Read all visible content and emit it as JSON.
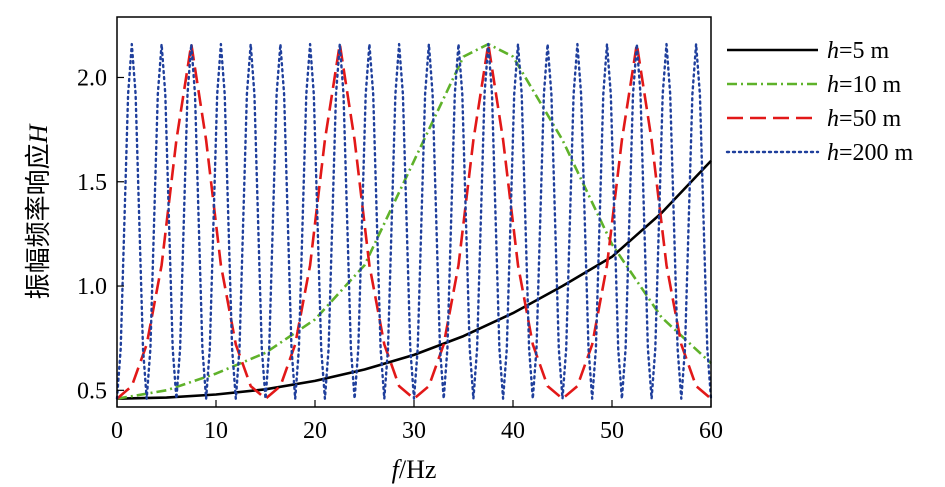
{
  "chart_data": {
    "type": "line",
    "xlabel": {
      "italic": "f",
      "rest": "/Hz"
    },
    "ylabel": {
      "text": "振幅频率响应",
      "italic": "H"
    },
    "xlim": [
      0,
      60
    ],
    "ylim": [
      0.42,
      2.29
    ],
    "x_ticks": [
      0,
      10,
      20,
      30,
      40,
      50,
      60
    ],
    "y_ticks": [
      0.5,
      1.0,
      1.5,
      2.0
    ],
    "x_tick_labels": [
      "0",
      "10",
      "20",
      "30",
      "40",
      "50",
      "60"
    ],
    "y_tick_labels": [
      "0.5",
      "1.0",
      "1.5",
      "2.0"
    ],
    "grid": false,
    "legend_position": "outside-right-top",
    "series": [
      {
        "name": "h=5 m",
        "legend_italic": "h",
        "legend_rest": "=5 m",
        "color": "#000000",
        "dash": "solid",
        "x": [
          0,
          5,
          10,
          15,
          20,
          25,
          30,
          35,
          40,
          45,
          50,
          55,
          60
        ],
        "y": [
          0.46,
          0.465,
          0.48,
          0.505,
          0.545,
          0.6,
          0.67,
          0.76,
          0.87,
          1.0,
          1.14,
          1.35,
          1.6
        ]
      },
      {
        "name": "h=10 m",
        "legend_italic": "h",
        "legend_rest": "=10 m",
        "color": "#5fb22a",
        "dash": "dashdot",
        "x": [
          0,
          5,
          10,
          15,
          20,
          25,
          30,
          35,
          37.5,
          40,
          45,
          50,
          55,
          60
        ],
        "y": [
          0.46,
          0.5,
          0.58,
          0.68,
          0.84,
          1.1,
          1.6,
          2.1,
          2.16,
          2.1,
          1.7,
          1.2,
          0.85,
          0.63
        ]
      },
      {
        "name": "h=50 m",
        "legend_italic": "h",
        "legend_rest": "=50 m",
        "color": "#e21818",
        "dash": "dashed",
        "x": [
          0,
          1.5,
          3,
          4.5,
          6,
          7.5,
          9,
          10.5,
          12,
          13.5,
          15,
          16.5,
          18,
          19.5,
          21,
          22.5,
          24,
          25.5,
          27,
          28.5,
          30,
          31.5,
          33,
          34.5,
          36,
          37.5,
          39,
          40.5,
          42,
          43.5,
          45,
          46.5,
          48,
          49.5,
          51,
          52.5,
          54,
          55.5,
          57,
          58.5,
          60
        ],
        "y": [
          0.46,
          0.52,
          0.72,
          1.1,
          1.7,
          2.16,
          1.7,
          1.1,
          0.72,
          0.52,
          0.46,
          0.52,
          0.72,
          1.1,
          1.7,
          2.16,
          1.7,
          1.1,
          0.72,
          0.52,
          0.46,
          0.52,
          0.72,
          1.1,
          1.7,
          2.16,
          1.7,
          1.1,
          0.72,
          0.52,
          0.46,
          0.52,
          0.72,
          1.1,
          1.7,
          2.16,
          1.7,
          1.1,
          0.72,
          0.52,
          0.46
        ]
      },
      {
        "name": "h=200 m",
        "legend_italic": "h",
        "legend_rest": "=200 m",
        "color": "#1f3f9c",
        "dash": "dotted",
        "x": [
          0,
          0.375,
          0.75,
          1.125,
          1.5,
          1.875,
          2.25,
          2.625,
          3,
          3.375,
          3.75,
          4.125,
          4.5,
          4.875,
          5.25,
          5.625,
          6,
          6.375,
          6.75,
          7.125,
          7.5,
          7.875,
          8.25,
          8.625,
          9,
          9.375,
          9.75,
          10.125,
          10.5,
          10.875,
          11.25,
          11.625,
          12,
          12.375,
          12.75,
          13.125,
          13.5,
          13.875,
          14.25,
          14.625,
          15,
          15.375,
          15.75,
          16.125,
          16.5,
          16.875,
          17.25,
          17.625,
          18,
          18.375,
          18.75,
          19.125,
          19.5,
          19.875,
          20.25,
          20.625,
          21,
          21.375,
          21.75,
          22.125,
          22.5,
          22.875,
          23.25,
          23.625,
          24,
          24.375,
          24.75,
          25.125,
          25.5,
          25.875,
          26.25,
          26.625,
          27,
          27.375,
          27.75,
          28.125,
          28.5,
          28.875,
          29.25,
          29.625,
          30,
          30.375,
          30.75,
          31.125,
          31.5,
          31.875,
          32.25,
          32.625,
          33,
          33.375,
          33.75,
          34.125,
          34.5,
          34.875,
          35.25,
          35.625,
          36,
          36.375,
          36.75,
          37.125,
          37.5,
          37.875,
          38.25,
          38.625,
          39,
          39.375,
          39.75,
          40.125,
          40.5,
          40.875,
          41.25,
          41.625,
          42,
          42.375,
          42.75,
          43.125,
          43.5,
          43.875,
          44.25,
          44.625,
          45,
          45.375,
          45.75,
          46.125,
          46.5,
          46.875,
          47.25,
          47.625,
          48,
          48.375,
          48.75,
          49.125,
          49.5,
          49.875,
          50.25,
          50.625,
          51,
          51.375,
          51.75,
          52.125,
          52.5,
          52.875,
          53.25,
          53.625,
          54,
          54.375,
          54.75,
          55.125,
          55.5,
          55.875,
          56.25,
          56.625,
          57,
          57.375,
          57.75,
          58.125,
          58.5,
          58.875,
          59.25,
          59.625,
          60
        ],
        "y": [
          0.46,
          0.7,
          1.31,
          1.92,
          2.16,
          1.92,
          1.31,
          0.7,
          0.46,
          0.7,
          1.31,
          1.92,
          2.16,
          1.92,
          1.31,
          0.7,
          0.46,
          0.7,
          1.31,
          1.92,
          2.16,
          1.92,
          1.31,
          0.7,
          0.46,
          0.7,
          1.31,
          1.92,
          2.16,
          1.92,
          1.31,
          0.7,
          0.46,
          0.7,
          1.31,
          1.92,
          2.16,
          1.92,
          1.31,
          0.7,
          0.46,
          0.7,
          1.31,
          1.92,
          2.16,
          1.92,
          1.31,
          0.7,
          0.46,
          0.7,
          1.31,
          1.92,
          2.16,
          1.92,
          1.31,
          0.7,
          0.46,
          0.7,
          1.31,
          1.92,
          2.16,
          1.92,
          1.31,
          0.7,
          0.46,
          0.7,
          1.31,
          1.92,
          2.16,
          1.92,
          1.31,
          0.7,
          0.46,
          0.7,
          1.31,
          1.92,
          2.16,
          1.92,
          1.31,
          0.7,
          0.46,
          0.7,
          1.31,
          1.92,
          2.16,
          1.92,
          1.31,
          0.7,
          0.46,
          0.7,
          1.31,
          1.92,
          2.16,
          1.92,
          1.31,
          0.7,
          0.46,
          0.7,
          1.31,
          1.92,
          2.16,
          1.92,
          1.31,
          0.7,
          0.46,
          0.7,
          1.31,
          1.92,
          2.16,
          1.92,
          1.31,
          0.7,
          0.46,
          0.7,
          1.31,
          1.92,
          2.16,
          1.92,
          1.31,
          0.7,
          0.46,
          0.7,
          1.31,
          1.92,
          2.16,
          1.92,
          1.31,
          0.7,
          0.46,
          0.7,
          1.31,
          1.92,
          2.16,
          1.92,
          1.31,
          0.7,
          0.46,
          0.7,
          1.31,
          1.92,
          2.16,
          1.92,
          1.31,
          0.7,
          0.46,
          0.7,
          1.31,
          1.92,
          2.16,
          1.92,
          1.31,
          0.7,
          0.46,
          0.7,
          1.31,
          1.92,
          2.16,
          1.92,
          1.31,
          0.7,
          0.46
        ]
      }
    ]
  }
}
